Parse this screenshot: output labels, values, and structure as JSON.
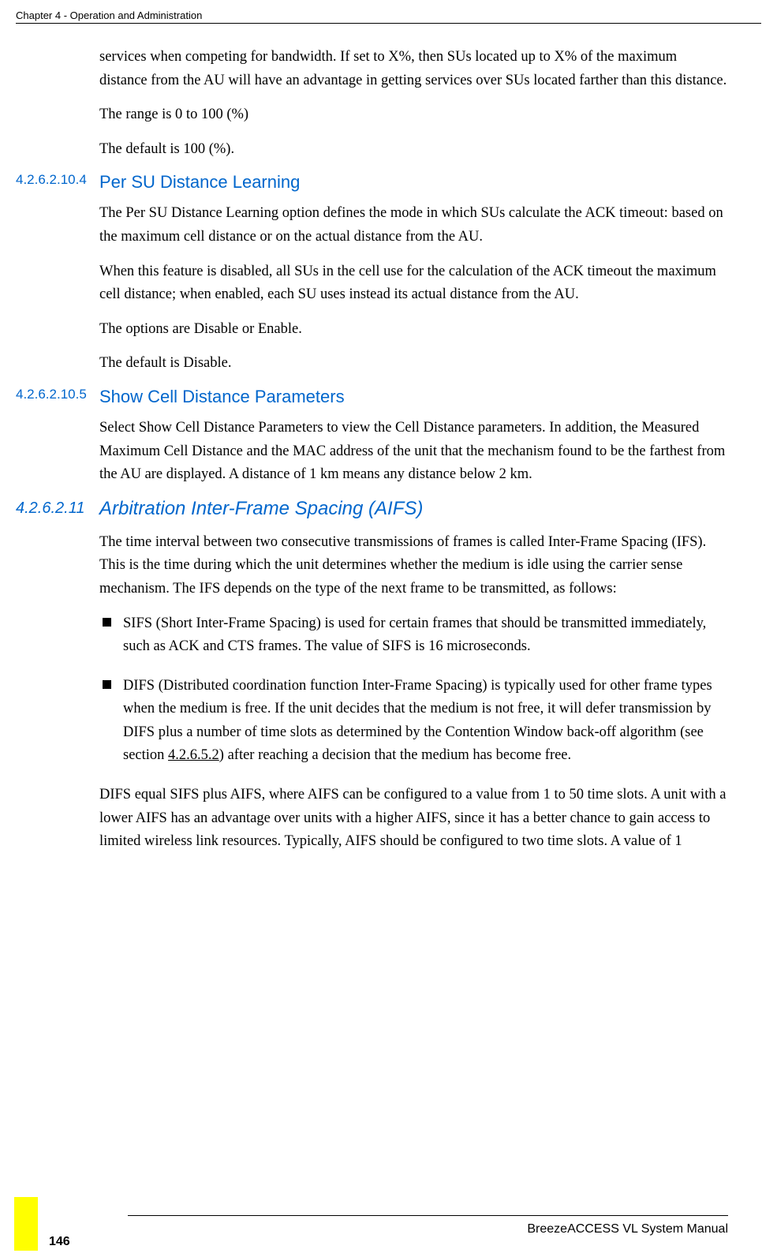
{
  "header": {
    "chapter": "Chapter 4 - Operation and Administration"
  },
  "intro": {
    "p1": "services when competing for bandwidth. If set to X%, then SUs located up to X% of the maximum distance from the AU will have an advantage in getting services over SUs located farther than this distance.",
    "p2": "The range is 0 to 100 (%)",
    "p3": "The default is 100 (%)."
  },
  "section1": {
    "number": "4.2.6.2.10.4",
    "title": "Per SU Distance Learning",
    "p1": "The Per SU Distance Learning option defines the mode in which SUs calculate the ACK timeout: based on the maximum cell distance or on the actual distance from the AU.",
    "p2": "When this feature is disabled, all SUs in the cell use for the calculation of the ACK timeout the maximum cell distance; when enabled, each SU uses instead its actual distance from the AU.",
    "p3": "The options are Disable or Enable.",
    "p4": "The default is Disable."
  },
  "section2": {
    "number": "4.2.6.2.10.5",
    "title": "Show Cell Distance Parameters",
    "p1": "Select Show Cell Distance Parameters to view the Cell Distance parameters. In addition, the Measured Maximum Cell Distance and the MAC address of the unit that the mechanism found to be the farthest from the AU are displayed. A distance of 1 km means any distance below 2 km."
  },
  "section3": {
    "number": "4.2.6.2.11",
    "title": "Arbitration Inter-Frame Spacing (AIFS)",
    "p1": "The time interval between two consecutive transmissions of frames is called Inter-Frame Spacing (IFS). This is the time during which the unit determines whether the medium is idle using the carrier sense mechanism. The IFS depends on the type of the next frame to be transmitted, as follows:",
    "bullet1": "SIFS (Short Inter-Frame Spacing) is used for certain frames that should be transmitted immediately, such as ACK and CTS frames. The value of SIFS is 16 microseconds.",
    "bullet2_part1": "DIFS (Distributed coordination function Inter-Frame Spacing) is typically used for other frame types when the medium is free. If the unit decides that the medium is not free, it will defer transmission by DIFS plus a number of time slots as determined by the Contention Window back-off algorithm (see section ",
    "bullet2_link": "4.2.6.5.2",
    "bullet2_part2": ") after reaching a decision that the medium has become free.",
    "p2": "DIFS equal SIFS plus AIFS, where AIFS can be configured to a value from 1 to 50 time slots. A unit with a lower AIFS has an advantage over units with a higher AIFS, since it has a better chance to gain access to limited wireless link resources. Typically, AIFS should be configured to two time slots. A value of 1"
  },
  "footer": {
    "manual": "BreezeACCESS VL System Manual",
    "page": "146"
  },
  "colors": {
    "heading_blue": "#0066cc",
    "text_black": "#000000",
    "highlight_yellow": "#ffff00",
    "background": "#ffffff"
  },
  "fonts": {
    "body": "Georgia, Times New Roman, serif",
    "heading": "Arial, sans-serif",
    "body_size": 18.5,
    "heading_size": 22,
    "heading_italic_size": 24,
    "header_size": 13,
    "footer_size": 16
  }
}
